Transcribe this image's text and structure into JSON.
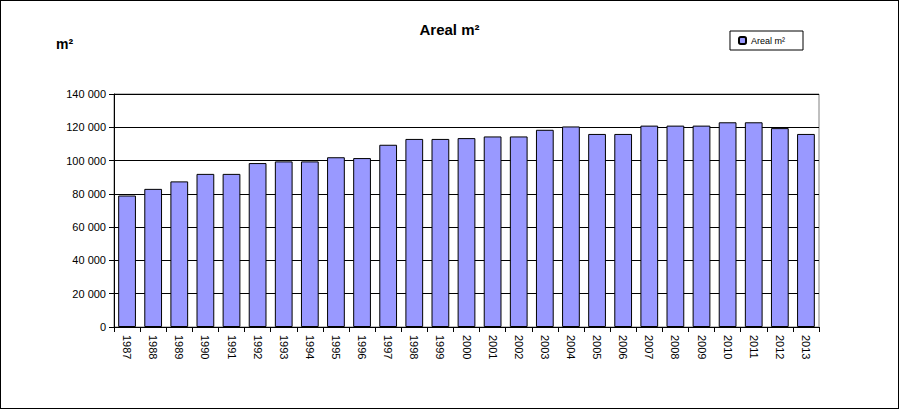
{
  "chart_data": {
    "type": "bar",
    "title": "Areal m²",
    "y_label": "m²",
    "categories": [
      "1987",
      "1988",
      "1989",
      "1990",
      "1991",
      "1992",
      "1993",
      "1994",
      "1995",
      "1996",
      "1997",
      "1998",
      "1999",
      "2000",
      "2001",
      "2002",
      "2003",
      "2004",
      "2005",
      "2006",
      "2007",
      "2008",
      "2009",
      "2010",
      "2011",
      "2012",
      "2013"
    ],
    "series": [
      {
        "name": "Areal m²",
        "color": "#9999ff",
        "values": [
          79000,
          83000,
          87500,
          92000,
          92000,
          98500,
          99500,
          99500,
          102000,
          101500,
          109500,
          113000,
          113000,
          113500,
          114500,
          114500,
          118500,
          120500,
          116000,
          116000,
          121000,
          121000,
          121000,
          123000,
          123000,
          119500,
          116000
        ]
      }
    ],
    "ylim": [
      0,
      140000
    ],
    "yticks": [
      0,
      {
        "value": 20000,
        "label": "20 000"
      },
      {
        "value": 40000,
        "label": "40 000"
      },
      {
        "value": 60000,
        "label": "60 000"
      },
      {
        "value": 80000,
        "label": "80 000"
      },
      {
        "value": 100000,
        "label": "100 000"
      },
      {
        "value": 120000,
        "label": "120 000"
      },
      {
        "value": 140000,
        "label": "140 000"
      }
    ],
    "grid": true,
    "legend": "top-right"
  }
}
